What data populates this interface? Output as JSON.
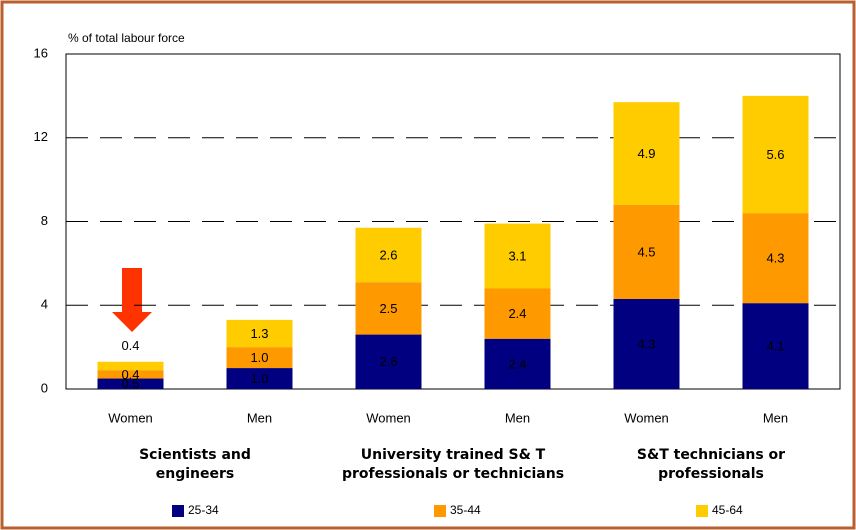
{
  "chart_data": {
    "type": "stacked_bar",
    "y_axis_label": "% of total labour force",
    "categories": [
      "Women",
      "Men",
      "Women",
      "Men",
      "Women",
      "Men"
    ],
    "group_labels": [
      [
        "Scientists and",
        "engineers"
      ],
      [
        "University trained S& T",
        "professionals or technicians"
      ],
      [
        "S&T technicians or",
        "professionals"
      ]
    ],
    "series": [
      {
        "name": "25-34",
        "color": "#000080",
        "values": [
          0.5,
          1.0,
          2.6,
          2.4,
          4.3,
          4.1
        ],
        "value_labels": [
          "0.5",
          "1.0",
          "2.6",
          "2.4",
          "4.3",
          "4.1"
        ]
      },
      {
        "name": "35-44",
        "color": "#ff9900",
        "values": [
          0.4,
          1.0,
          2.5,
          2.4,
          4.5,
          4.3
        ],
        "value_labels": [
          "0.4",
          "1.0",
          "2.5",
          "2.4",
          "4.5",
          "4.3"
        ]
      },
      {
        "name": "45-64",
        "color": "#ffcc00",
        "values": [
          0.4,
          1.3,
          2.6,
          3.1,
          4.9,
          5.6
        ],
        "value_labels": [
          "0.4",
          "1.3",
          "2.6",
          "3.1",
          "4.9",
          "5.6"
        ]
      }
    ],
    "ylim": [
      0,
      16
    ],
    "yticks": [
      0,
      4,
      8,
      12,
      16
    ],
    "grid": true
  }
}
